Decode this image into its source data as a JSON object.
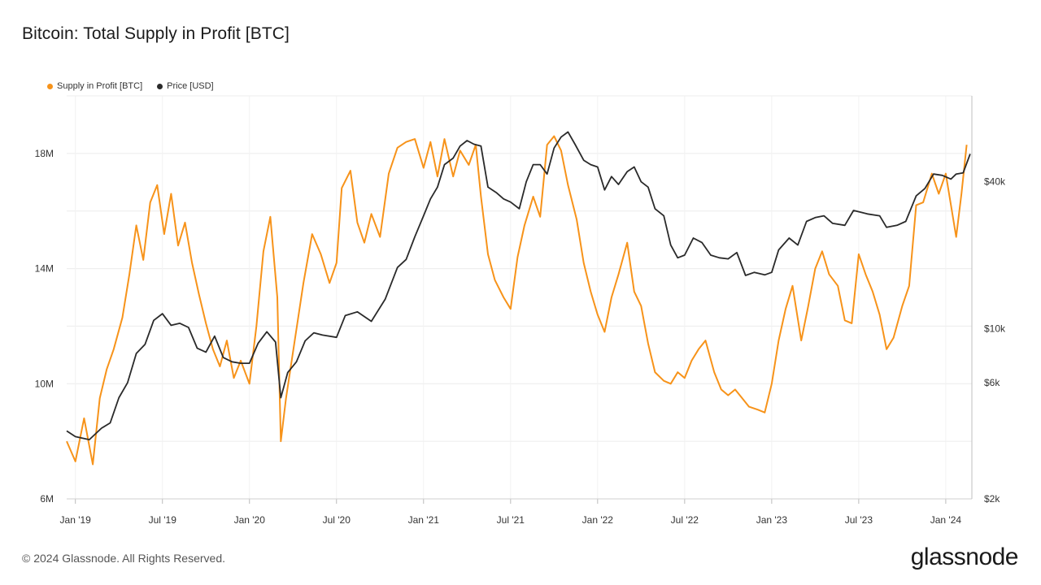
{
  "chart_data": {
    "type": "line",
    "title": "Bitcoin: Total Supply in Profit [BTC]",
    "legend": [
      {
        "name": "Supply in Profit [BTC]",
        "color": "#f7931a"
      },
      {
        "name": "Price [USD]",
        "color": "#2a2a2a"
      }
    ],
    "x_ticks": [
      "Jan '19",
      "Jul '19",
      "Jan '20",
      "Jul '20",
      "Jan '21",
      "Jul '21",
      "Jan '22",
      "Jul '22",
      "Jan '23",
      "Jul '23",
      "Jan '24"
    ],
    "x_range": [
      2018.95,
      2024.15
    ],
    "y_left": {
      "ticks": [
        "6M",
        "10M",
        "14M",
        "18M"
      ],
      "tick_values": [
        6,
        10,
        14,
        18
      ],
      "range": [
        6,
        20
      ],
      "unit": "M BTC"
    },
    "y_right": {
      "ticks": [
        "$2k",
        "$6k",
        "$10k",
        "$40k"
      ],
      "tick_values": [
        2000,
        6000,
        10000,
        40000
      ],
      "range": [
        2000,
        90000
      ],
      "scale": "log"
    },
    "series": [
      {
        "name": "Supply in Profit [BTC]",
        "axis": "left",
        "color": "#f7931a",
        "points": [
          [
            2018.95,
            8.0
          ],
          [
            2019.0,
            7.3
          ],
          [
            2019.05,
            8.8
          ],
          [
            2019.1,
            7.2
          ],
          [
            2019.14,
            9.5
          ],
          [
            2019.18,
            10.5
          ],
          [
            2019.22,
            11.2
          ],
          [
            2019.27,
            12.3
          ],
          [
            2019.31,
            13.8
          ],
          [
            2019.35,
            15.5
          ],
          [
            2019.39,
            14.3
          ],
          [
            2019.43,
            16.3
          ],
          [
            2019.47,
            16.9
          ],
          [
            2019.51,
            15.2
          ],
          [
            2019.55,
            16.6
          ],
          [
            2019.59,
            14.8
          ],
          [
            2019.63,
            15.6
          ],
          [
            2019.67,
            14.2
          ],
          [
            2019.71,
            13.1
          ],
          [
            2019.75,
            12.1
          ],
          [
            2019.79,
            11.2
          ],
          [
            2019.83,
            10.6
          ],
          [
            2019.87,
            11.5
          ],
          [
            2019.91,
            10.2
          ],
          [
            2019.95,
            10.8
          ],
          [
            2020.0,
            10.0
          ],
          [
            2020.04,
            12.0
          ],
          [
            2020.08,
            14.6
          ],
          [
            2020.12,
            15.8
          ],
          [
            2020.16,
            13.0
          ],
          [
            2020.18,
            8.0
          ],
          [
            2020.21,
            9.5
          ],
          [
            2020.26,
            11.5
          ],
          [
            2020.31,
            13.5
          ],
          [
            2020.36,
            15.2
          ],
          [
            2020.41,
            14.5
          ],
          [
            2020.46,
            13.5
          ],
          [
            2020.5,
            14.2
          ],
          [
            2020.53,
            16.8
          ],
          [
            2020.58,
            17.4
          ],
          [
            2020.62,
            15.6
          ],
          [
            2020.66,
            14.9
          ],
          [
            2020.7,
            15.9
          ],
          [
            2020.75,
            15.1
          ],
          [
            2020.8,
            17.3
          ],
          [
            2020.85,
            18.2
          ],
          [
            2020.9,
            18.4
          ],
          [
            2020.95,
            18.5
          ],
          [
            2021.0,
            17.5
          ],
          [
            2021.04,
            18.4
          ],
          [
            2021.08,
            17.2
          ],
          [
            2021.12,
            18.5
          ],
          [
            2021.17,
            17.2
          ],
          [
            2021.21,
            18.1
          ],
          [
            2021.26,
            17.6
          ],
          [
            2021.3,
            18.3
          ],
          [
            2021.33,
            16.5
          ],
          [
            2021.37,
            14.5
          ],
          [
            2021.41,
            13.6
          ],
          [
            2021.46,
            13.0
          ],
          [
            2021.5,
            12.6
          ],
          [
            2021.54,
            14.4
          ],
          [
            2021.58,
            15.5
          ],
          [
            2021.63,
            16.5
          ],
          [
            2021.67,
            15.8
          ],
          [
            2021.71,
            18.3
          ],
          [
            2021.75,
            18.6
          ],
          [
            2021.79,
            18.1
          ],
          [
            2021.83,
            16.9
          ],
          [
            2021.88,
            15.7
          ],
          [
            2021.92,
            14.2
          ],
          [
            2021.96,
            13.2
          ],
          [
            2022.0,
            12.4
          ],
          [
            2022.04,
            11.8
          ],
          [
            2022.08,
            13.0
          ],
          [
            2022.12,
            13.8
          ],
          [
            2022.17,
            14.9
          ],
          [
            2022.21,
            13.2
          ],
          [
            2022.25,
            12.7
          ],
          [
            2022.29,
            11.4
          ],
          [
            2022.33,
            10.4
          ],
          [
            2022.38,
            10.1
          ],
          [
            2022.42,
            10.0
          ],
          [
            2022.46,
            10.4
          ],
          [
            2022.5,
            10.2
          ],
          [
            2022.54,
            10.8
          ],
          [
            2022.58,
            11.2
          ],
          [
            2022.62,
            11.5
          ],
          [
            2022.67,
            10.4
          ],
          [
            2022.71,
            9.8
          ],
          [
            2022.75,
            9.6
          ],
          [
            2022.79,
            9.8
          ],
          [
            2022.83,
            9.5
          ],
          [
            2022.87,
            9.2
          ],
          [
            2022.92,
            9.1
          ],
          [
            2022.96,
            9.0
          ],
          [
            2023.0,
            10.0
          ],
          [
            2023.04,
            11.5
          ],
          [
            2023.08,
            12.6
          ],
          [
            2023.12,
            13.4
          ],
          [
            2023.17,
            11.5
          ],
          [
            2023.21,
            12.7
          ],
          [
            2023.25,
            14.0
          ],
          [
            2023.29,
            14.6
          ],
          [
            2023.33,
            13.8
          ],
          [
            2023.38,
            13.4
          ],
          [
            2023.42,
            12.2
          ],
          [
            2023.46,
            12.1
          ],
          [
            2023.5,
            14.5
          ],
          [
            2023.54,
            13.8
          ],
          [
            2023.58,
            13.2
          ],
          [
            2023.62,
            12.4
          ],
          [
            2023.66,
            11.2
          ],
          [
            2023.7,
            11.6
          ],
          [
            2023.75,
            12.7
          ],
          [
            2023.79,
            13.4
          ],
          [
            2023.83,
            16.2
          ],
          [
            2023.87,
            16.3
          ],
          [
            2023.92,
            17.3
          ],
          [
            2023.96,
            16.6
          ],
          [
            2024.0,
            17.3
          ],
          [
            2024.03,
            16.2
          ],
          [
            2024.06,
            15.1
          ],
          [
            2024.09,
            16.6
          ],
          [
            2024.12,
            18.3
          ]
        ]
      },
      {
        "name": "Price [USD]",
        "axis": "right",
        "color": "#2a2a2a",
        "points": [
          [
            2018.95,
            3800
          ],
          [
            2019.0,
            3600
          ],
          [
            2019.08,
            3500
          ],
          [
            2019.15,
            3900
          ],
          [
            2019.2,
            4100
          ],
          [
            2019.25,
            5200
          ],
          [
            2019.3,
            6000
          ],
          [
            2019.35,
            7900
          ],
          [
            2019.4,
            8600
          ],
          [
            2019.45,
            10800
          ],
          [
            2019.5,
            11500
          ],
          [
            2019.55,
            10300
          ],
          [
            2019.6,
            10500
          ],
          [
            2019.65,
            10100
          ],
          [
            2019.7,
            8300
          ],
          [
            2019.75,
            8000
          ],
          [
            2019.8,
            9300
          ],
          [
            2019.85,
            7600
          ],
          [
            2019.9,
            7300
          ],
          [
            2019.95,
            7200
          ],
          [
            2020.0,
            7200
          ],
          [
            2020.05,
            8700
          ],
          [
            2020.1,
            9700
          ],
          [
            2020.15,
            8800
          ],
          [
            2020.18,
            5200
          ],
          [
            2020.22,
            6600
          ],
          [
            2020.27,
            7300
          ],
          [
            2020.32,
            8900
          ],
          [
            2020.37,
            9600
          ],
          [
            2020.42,
            9400
          ],
          [
            2020.5,
            9200
          ],
          [
            2020.55,
            11300
          ],
          [
            2020.62,
            11700
          ],
          [
            2020.7,
            10700
          ],
          [
            2020.78,
            13200
          ],
          [
            2020.85,
            17800
          ],
          [
            2020.9,
            19200
          ],
          [
            2020.95,
            23800
          ],
          [
            2021.0,
            29000
          ],
          [
            2021.04,
            34000
          ],
          [
            2021.08,
            38000
          ],
          [
            2021.12,
            47000
          ],
          [
            2021.17,
            50000
          ],
          [
            2021.21,
            56000
          ],
          [
            2021.25,
            59000
          ],
          [
            2021.29,
            57000
          ],
          [
            2021.33,
            56000
          ],
          [
            2021.37,
            38000
          ],
          [
            2021.42,
            36000
          ],
          [
            2021.46,
            34000
          ],
          [
            2021.5,
            33000
          ],
          [
            2021.55,
            31000
          ],
          [
            2021.59,
            40000
          ],
          [
            2021.63,
            47000
          ],
          [
            2021.67,
            47000
          ],
          [
            2021.71,
            43000
          ],
          [
            2021.75,
            55000
          ],
          [
            2021.79,
            61000
          ],
          [
            2021.83,
            64000
          ],
          [
            2021.87,
            57000
          ],
          [
            2021.92,
            49000
          ],
          [
            2021.96,
            47000
          ],
          [
            2022.0,
            46000
          ],
          [
            2022.04,
            37000
          ],
          [
            2022.08,
            42000
          ],
          [
            2022.12,
            39000
          ],
          [
            2022.17,
            44000
          ],
          [
            2022.21,
            46000
          ],
          [
            2022.25,
            40000
          ],
          [
            2022.29,
            38000
          ],
          [
            2022.33,
            31000
          ],
          [
            2022.38,
            29000
          ],
          [
            2022.42,
            22000
          ],
          [
            2022.46,
            19500
          ],
          [
            2022.5,
            20000
          ],
          [
            2022.55,
            23500
          ],
          [
            2022.6,
            22500
          ],
          [
            2022.65,
            20000
          ],
          [
            2022.7,
            19500
          ],
          [
            2022.75,
            19300
          ],
          [
            2022.8,
            20500
          ],
          [
            2022.85,
            16500
          ],
          [
            2022.9,
            17000
          ],
          [
            2022.96,
            16600
          ],
          [
            2023.0,
            17000
          ],
          [
            2023.04,
            21000
          ],
          [
            2023.1,
            23500
          ],
          [
            2023.15,
            22000
          ],
          [
            2023.2,
            27500
          ],
          [
            2023.25,
            28500
          ],
          [
            2023.3,
            29000
          ],
          [
            2023.35,
            27000
          ],
          [
            2023.42,
            26500
          ],
          [
            2023.47,
            30500
          ],
          [
            2023.55,
            29500
          ],
          [
            2023.62,
            29000
          ],
          [
            2023.66,
            26000
          ],
          [
            2023.72,
            26500
          ],
          [
            2023.77,
            27500
          ],
          [
            2023.83,
            35000
          ],
          [
            2023.88,
            37500
          ],
          [
            2023.93,
            43000
          ],
          [
            2023.98,
            42500
          ],
          [
            2024.03,
            41000
          ],
          [
            2024.06,
            43000
          ],
          [
            2024.1,
            43500
          ],
          [
            2024.14,
            52000
          ]
        ]
      }
    ]
  },
  "footer": {
    "copyright": "© 2024 Glassnode. All Rights Reserved.",
    "brand": "glassnode"
  }
}
